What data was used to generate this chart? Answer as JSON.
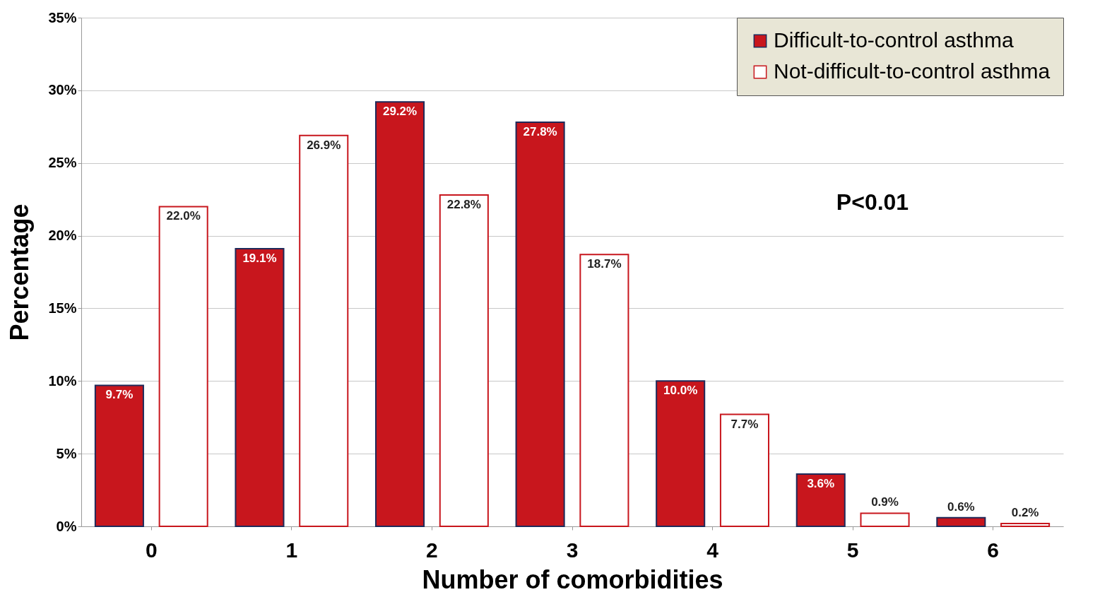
{
  "chart_data": {
    "type": "bar",
    "xlabel": "Number of comorbidities",
    "ylabel": "Percentage",
    "categories": [
      "0",
      "1",
      "2",
      "3",
      "4",
      "5",
      "6"
    ],
    "series": [
      {
        "name": "Difficult-to-control asthma",
        "color": "#c8161d",
        "values": [
          9.7,
          19.1,
          29.2,
          27.8,
          10.0,
          3.6,
          0.6
        ],
        "value_labels": [
          "9.7%",
          "19.1%",
          "29.2%",
          "27.8%",
          "10.0%",
          "3.6%",
          "0.6%"
        ]
      },
      {
        "name": "Not-difficult-to-control asthma",
        "color": "#ffffff",
        "values": [
          22.0,
          26.9,
          22.8,
          18.7,
          7.7,
          0.9,
          0.2
        ],
        "value_labels": [
          "22.0%",
          "26.9%",
          "22.8%",
          "18.7%",
          "7.7%",
          "0.9%",
          "0.2%"
        ]
      }
    ],
    "ylim": [
      0,
      35
    ],
    "yticks": [
      {
        "value": 0,
        "label": "0%"
      },
      {
        "value": 5,
        "label": "5%"
      },
      {
        "value": 10,
        "label": "10%"
      },
      {
        "value": 15,
        "label": "15%"
      },
      {
        "value": 20,
        "label": "20%"
      },
      {
        "value": 25,
        "label": "25%"
      },
      {
        "value": 30,
        "label": "30%"
      },
      {
        "value": 35,
        "label": "35%"
      }
    ],
    "grid": "y",
    "legend": "top right",
    "annotations": [
      "P<0.01"
    ]
  }
}
